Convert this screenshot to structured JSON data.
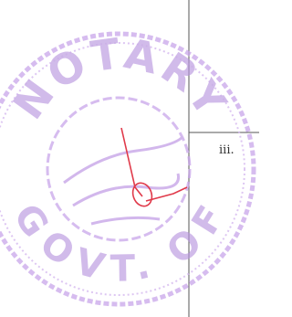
{
  "stamp": {
    "top_text": "NOTARY",
    "bottom_text": "GOVT. OF"
  },
  "document": {
    "marker": "iii."
  }
}
